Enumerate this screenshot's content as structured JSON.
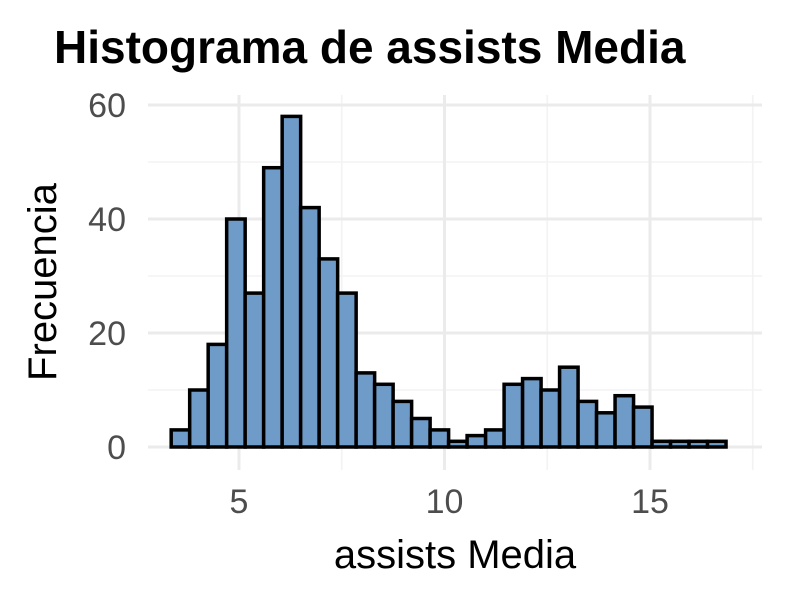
{
  "chart_data": {
    "type": "bar",
    "title": "Histograma de assists Media",
    "xlabel": "assists Media",
    "ylabel": "Frecuencia",
    "xlim": [
      3.0,
      17.5
    ],
    "ylim": [
      0,
      62
    ],
    "x_ticks": [
      5,
      10,
      15
    ],
    "x_tick_labels": [
      "5",
      "10",
      "15"
    ],
    "y_ticks": [
      0,
      20,
      40,
      60
    ],
    "y_tick_labels": [
      "0",
      "20",
      "40",
      "60"
    ],
    "grid": true,
    "bar_color": "#6f9bc8",
    "bar_outline": "#000000",
    "bin_edges": [
      3.35,
      3.8,
      4.25,
      4.7,
      5.15,
      5.6,
      6.05,
      6.5,
      6.95,
      7.4,
      7.85,
      8.3,
      8.75,
      9.2,
      9.65,
      10.1,
      10.55,
      11.0,
      11.45,
      11.9,
      12.35,
      12.8,
      13.25,
      13.7,
      14.15,
      14.6,
      15.05,
      15.5,
      15.95,
      16.4,
      16.85
    ],
    "counts": [
      3,
      10,
      18,
      40,
      27,
      49,
      58,
      42,
      33,
      27,
      13,
      11,
      8,
      5,
      3,
      1,
      2,
      3,
      11,
      12,
      10,
      14,
      8,
      6,
      9,
      7,
      1,
      1,
      1,
      1
    ]
  }
}
